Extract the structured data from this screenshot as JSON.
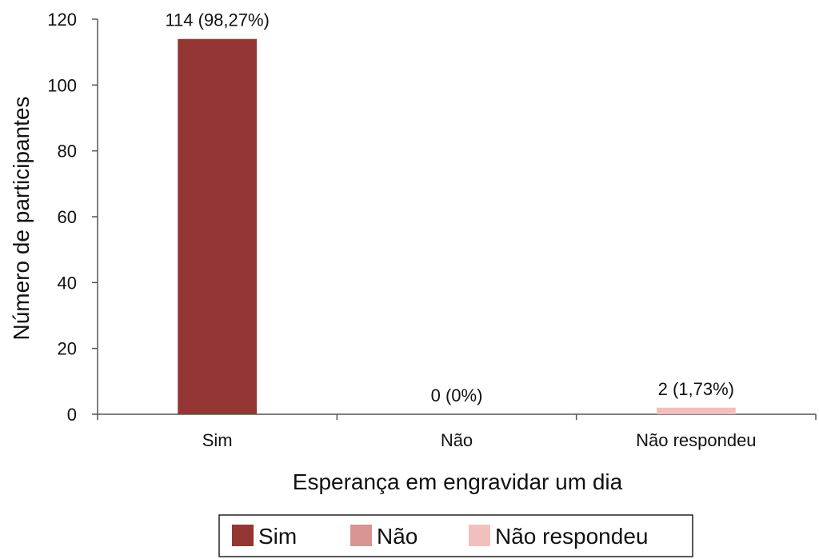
{
  "chart_data": {
    "type": "bar",
    "categories": [
      "Sim",
      "Não",
      "Não respondeu"
    ],
    "values": [
      114,
      0,
      2
    ],
    "data_labels": [
      "114 (98,27%)",
      "0 (0%)",
      "2 (1,73%)"
    ],
    "colors": [
      "#943634",
      "#D99594",
      "#F2BFBF"
    ],
    "title": "",
    "xlabel": "Esperança em engravidar um dia",
    "ylabel": "Número de participantes",
    "ylim": [
      0,
      120
    ],
    "yticks": [
      0,
      20,
      40,
      60,
      80,
      100,
      120
    ],
    "grid": false,
    "legend": {
      "position": "bottom",
      "entries": [
        "Sim",
        "Não",
        "Não respondeu"
      ]
    }
  }
}
